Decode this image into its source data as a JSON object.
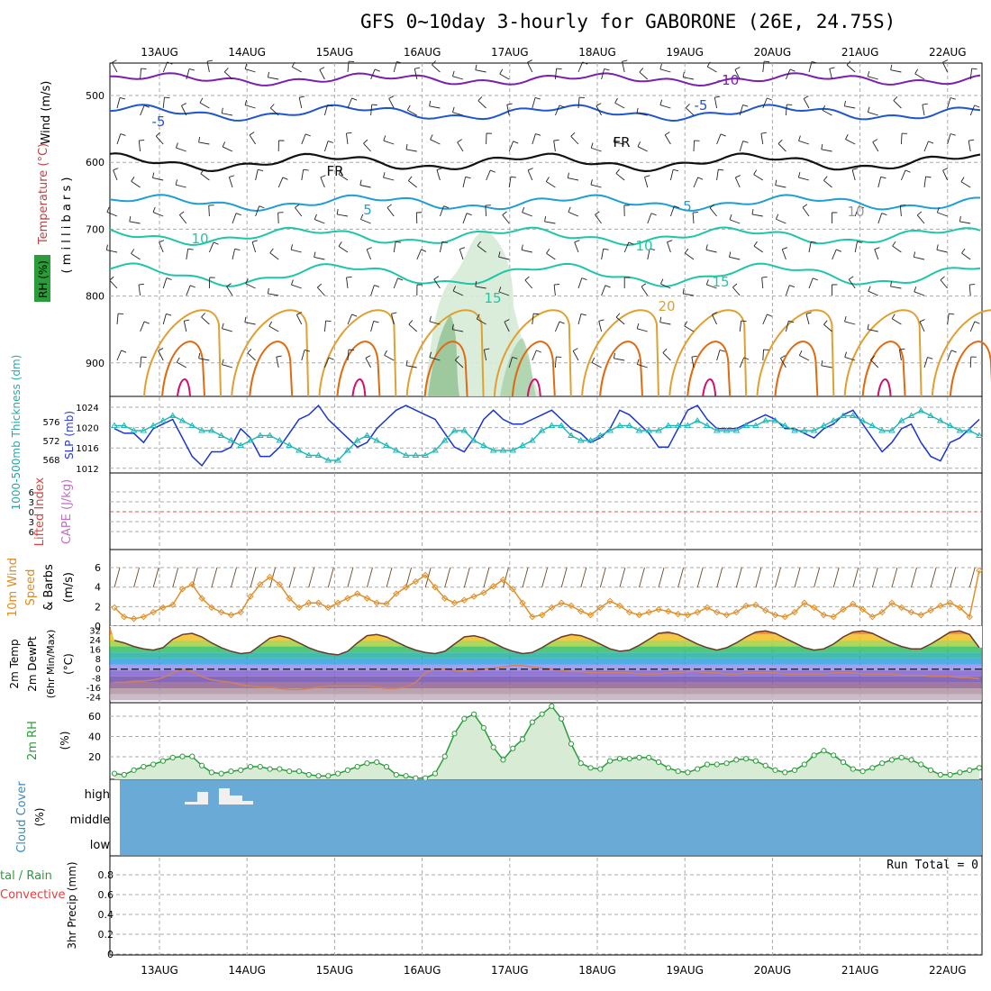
{
  "title": "GFS 0~10day 3-hourly for GABORONE (26E, 24.75S)",
  "dates": [
    "13AUG",
    "14AUG",
    "15AUG",
    "16AUG",
    "17AUG",
    "18AUG",
    "19AUG",
    "20AUG",
    "21AUG",
    "22AUG"
  ],
  "colors": {
    "rh_green": "#2a9d3a",
    "temp_purple": "#7a1fb0",
    "temp_blue": "#1f55d0",
    "temp_cyan": "#1e9ed6",
    "temp_teal": "#1ec6a8",
    "temp_orange": "#e0a030",
    "temp_dkorange": "#e06a10",
    "temp_magenta": "#d0106a",
    "slp_blue": "#1a35d0",
    "thick_cyan": "#22b8b8",
    "wind10": "#e0902a",
    "rh2m": "#2a9d3a",
    "cloud_bg": "#6aaad6",
    "cloud_bars": "#f0f0f0"
  },
  "panels": {
    "upper": {
      "ylabel_wind": "Wind (m/s)",
      "ylabel_temp": "Temperature (°C)",
      "ylabel_rh": "RH (%)",
      "ylabel_mb": "( m i l l i b a r s )",
      "ticks": [
        "500",
        "600",
        "700",
        "800",
        "900"
      ],
      "contour_labels": [
        "-10",
        "-5",
        "-5",
        "FR",
        "FR",
        "5",
        "5",
        "10",
        "10",
        "15",
        "15",
        "20",
        "10"
      ]
    },
    "slp": {
      "ylabel_thick": "1000-500mb Thickness (dm)",
      "ylabel_slp": "SLP (mb)",
      "ticks_left": [
        "576",
        "572",
        "568"
      ],
      "ticks_right": [
        "1024",
        "1020",
        "1016",
        "1012"
      ]
    },
    "li": {
      "ylabel_li": "Lifted Index",
      "ylabel_cape": "CAPE (J/kg)",
      "ticks": [
        "6",
        "3",
        "0",
        "3",
        "6"
      ]
    },
    "wind10m": {
      "ylabel1": "10m Wind",
      "ylabel2": "Speed",
      "ylabel3": "& Barbs",
      "ylabel4": "(m/s)",
      "ticks": [
        "6",
        "4",
        "2",
        "0"
      ]
    },
    "temp2m": {
      "ylabel1": "2m Temp",
      "ylabel2": "2m DewPt",
      "ylabel3": "(6hr Min/Max)",
      "ylabel4": "(°C)",
      "ticks": [
        "32",
        "24",
        "16",
        "8",
        "0",
        "-8",
        "-16",
        "-24"
      ]
    },
    "rh2m": {
      "ylabel1": "2m RH",
      "ylabel2": "(%)",
      "ticks": [
        "60",
        "40",
        "20"
      ]
    },
    "cloud": {
      "ylabel1": "Cloud Cover",
      "ylabel2": "(%)",
      "levels": [
        "high",
        "middle",
        "low"
      ]
    },
    "precip": {
      "ylabel1": "tal / Rain",
      "ylabel2": "Convective",
      "ylabel3": "3hr Precip (mm)",
      "ticks": [
        "0.8",
        "0.6",
        "0.4",
        "0.2",
        "0"
      ],
      "run_total": "Run Total = 0"
    }
  },
  "chart_data": [
    {
      "type": "line",
      "title": "SLP and 1000-500mb Thickness",
      "ylabel": "SLP (mb)",
      "ylim": [
        1011,
        1026
      ],
      "series": [
        {
          "name": "SLP (mb)",
          "values": [
            1020,
            1019,
            1019,
            1017,
            1020,
            1021,
            1022,
            1018,
            1014,
            1012,
            1015,
            1015,
            1016,
            1020,
            1018,
            1014,
            1014,
            1016,
            1019,
            1022,
            1023,
            1025,
            1022,
            1020,
            1018,
            1016,
            1017,
            1020,
            1022,
            1024,
            1025,
            1024,
            1023,
            1022,
            1019,
            1016,
            1015,
            1018,
            1022,
            1024,
            1022,
            1021,
            1021,
            1022,
            1023,
            1024,
            1022,
            1020,
            1019,
            1017,
            1018,
            1020,
            1024,
            1023,
            1021,
            1019,
            1016,
            1016,
            1020,
            1024,
            1025,
            1022,
            1020,
            1020,
            1020,
            1021,
            1022,
            1023,
            1022,
            1020,
            1020,
            1019,
            1018,
            1020,
            1021,
            1023,
            1024,
            1021,
            1018,
            1015,
            1017,
            1020,
            1021,
            1017,
            1014,
            1013,
            1017,
            1018,
            1020,
            1022
          ]
        },
        {
          "name": "Thickness (dm)",
          "values": [
            575,
            575,
            574,
            574,
            575,
            576,
            577,
            576,
            575,
            574,
            574,
            573,
            572,
            571,
            572,
            573,
            573,
            572,
            571,
            570,
            569,
            569,
            568,
            568,
            570,
            572,
            573,
            572,
            571,
            570,
            569,
            569,
            569,
            570,
            572,
            574,
            574,
            572,
            571,
            570,
            570,
            570,
            571,
            572,
            574,
            575,
            575,
            573,
            572,
            572,
            573,
            574,
            575,
            575,
            574,
            574,
            574,
            575,
            575,
            575,
            576,
            575,
            574,
            574,
            574,
            575,
            575,
            576,
            576,
            575,
            574,
            574,
            574,
            575,
            576,
            577,
            577,
            576,
            575,
            574,
            574,
            576,
            577,
            578,
            577,
            576,
            575,
            574,
            574,
            573
          ]
        }
      ]
    },
    {
      "type": "line",
      "title": "10m Wind Speed",
      "ylabel": "(m/s)",
      "ylim": [
        0,
        7
      ],
      "series": [
        {
          "name": "Speed",
          "values": [
            2,
            1,
            0.8,
            1,
            1.5,
            2,
            2.3,
            4,
            4.5,
            3,
            2,
            1.5,
            1.2,
            1.5,
            3.2,
            4.5,
            5.3,
            4.5,
            3,
            2,
            2.5,
            2.5,
            2,
            2.5,
            3,
            3.5,
            3,
            2.5,
            2.4,
            3.5,
            4.2,
            4.8,
            5.5,
            4.2,
            3,
            2.5,
            2.8,
            3.2,
            3.6,
            4.3,
            5,
            4,
            2.5,
            1,
            1.2,
            2,
            2.5,
            2.2,
            1.6,
            1.2,
            2,
            2.7,
            2.2,
            1.5,
            1.2,
            1.5,
            1.8,
            1.6,
            1.3,
            1.2,
            1.5,
            2,
            1.5,
            1.2,
            1.5,
            2.2,
            2.3,
            1.7,
            1.2,
            1,
            1.5,
            2.5,
            2,
            1.2,
            1,
            1.8,
            2.4,
            1.8,
            1,
            1.5,
            2.5,
            2,
            1.5,
            1.2,
            1.7,
            2.2,
            2.5,
            2,
            1,
            6
          ]
        }
      ]
    },
    {
      "type": "line",
      "title": "2m Temp and DewPt",
      "ylabel": "(°C)",
      "ylim": [
        -28,
        36
      ],
      "series": [
        {
          "name": "2m Temp",
          "values": [
            24,
            22,
            19,
            17,
            16,
            18,
            25,
            29,
            30,
            27,
            22,
            18,
            15,
            13,
            14,
            20,
            26,
            28,
            26,
            22,
            18,
            15,
            13,
            12,
            15,
            22,
            28,
            29,
            27,
            23,
            19,
            16,
            14,
            13,
            15,
            21,
            27,
            28,
            26,
            22,
            18,
            15,
            13,
            14,
            18,
            23,
            27,
            29,
            28,
            25,
            21,
            17,
            15,
            16,
            20,
            25,
            30,
            31,
            29,
            25,
            21,
            18,
            16,
            18,
            22,
            27,
            31,
            32,
            30,
            26,
            22,
            18,
            16,
            17,
            21,
            27,
            31,
            32,
            30,
            26,
            22,
            19,
            17,
            17,
            21,
            26,
            31,
            32,
            29,
            18
          ]
        },
        {
          "name": "2m DewPt",
          "values": [
            -11,
            -11,
            -10,
            -10,
            -9,
            -7,
            -3,
            0,
            -2,
            -6,
            -9,
            -10,
            -11,
            -13,
            -14,
            -15,
            -15,
            -16,
            -17,
            -17,
            -16,
            -15,
            -14,
            -14,
            -14,
            -14,
            -14,
            -15,
            -16,
            -16,
            -15,
            -11,
            -3,
            0,
            0,
            -1,
            -2,
            -1,
            0,
            1,
            2,
            3,
            3,
            2,
            1,
            0,
            -1,
            -2,
            -2,
            -3,
            -3,
            -3,
            -3,
            -3,
            -4,
            -4,
            -4,
            -3,
            -3,
            -2,
            -2,
            -3,
            -3,
            -4,
            -4,
            -3,
            -3,
            -3,
            -3,
            -4,
            -4,
            -4,
            -4,
            -4,
            -3,
            -3,
            -3,
            -4,
            -4,
            -4,
            -4,
            -5,
            -5,
            -5,
            -6,
            -6,
            -6,
            -7,
            -7,
            -8
          ]
        }
      ]
    },
    {
      "type": "area",
      "title": "2m RH",
      "ylabel": "(%)",
      "ylim": [
        5,
        72
      ],
      "series": [
        {
          "name": "2m RH",
          "values": [
            10,
            9,
            13,
            16,
            18,
            21,
            24,
            25,
            25,
            17,
            11,
            10,
            12,
            13,
            16,
            16,
            14,
            14,
            12,
            12,
            9,
            8,
            8,
            10,
            13,
            16,
            19,
            20,
            16,
            9,
            8,
            6,
            6,
            10,
            25,
            45,
            58,
            62,
            50,
            33,
            22,
            32,
            40,
            55,
            62,
            69,
            58,
            36,
            19,
            15,
            14,
            21,
            23,
            23,
            24,
            24,
            20,
            15,
            12,
            11,
            14,
            18,
            18,
            19,
            22,
            23,
            21,
            17,
            13,
            11,
            13,
            18,
            26,
            30,
            26,
            20,
            14,
            12,
            15,
            19,
            22,
            24,
            22,
            18,
            13,
            9,
            9,
            11,
            13,
            15
          ]
        }
      ]
    },
    {
      "type": "bar",
      "title": "3hr Precip",
      "ylabel": "3hr Precip (mm)",
      "ylim": [
        0,
        1
      ],
      "values": []
    }
  ]
}
